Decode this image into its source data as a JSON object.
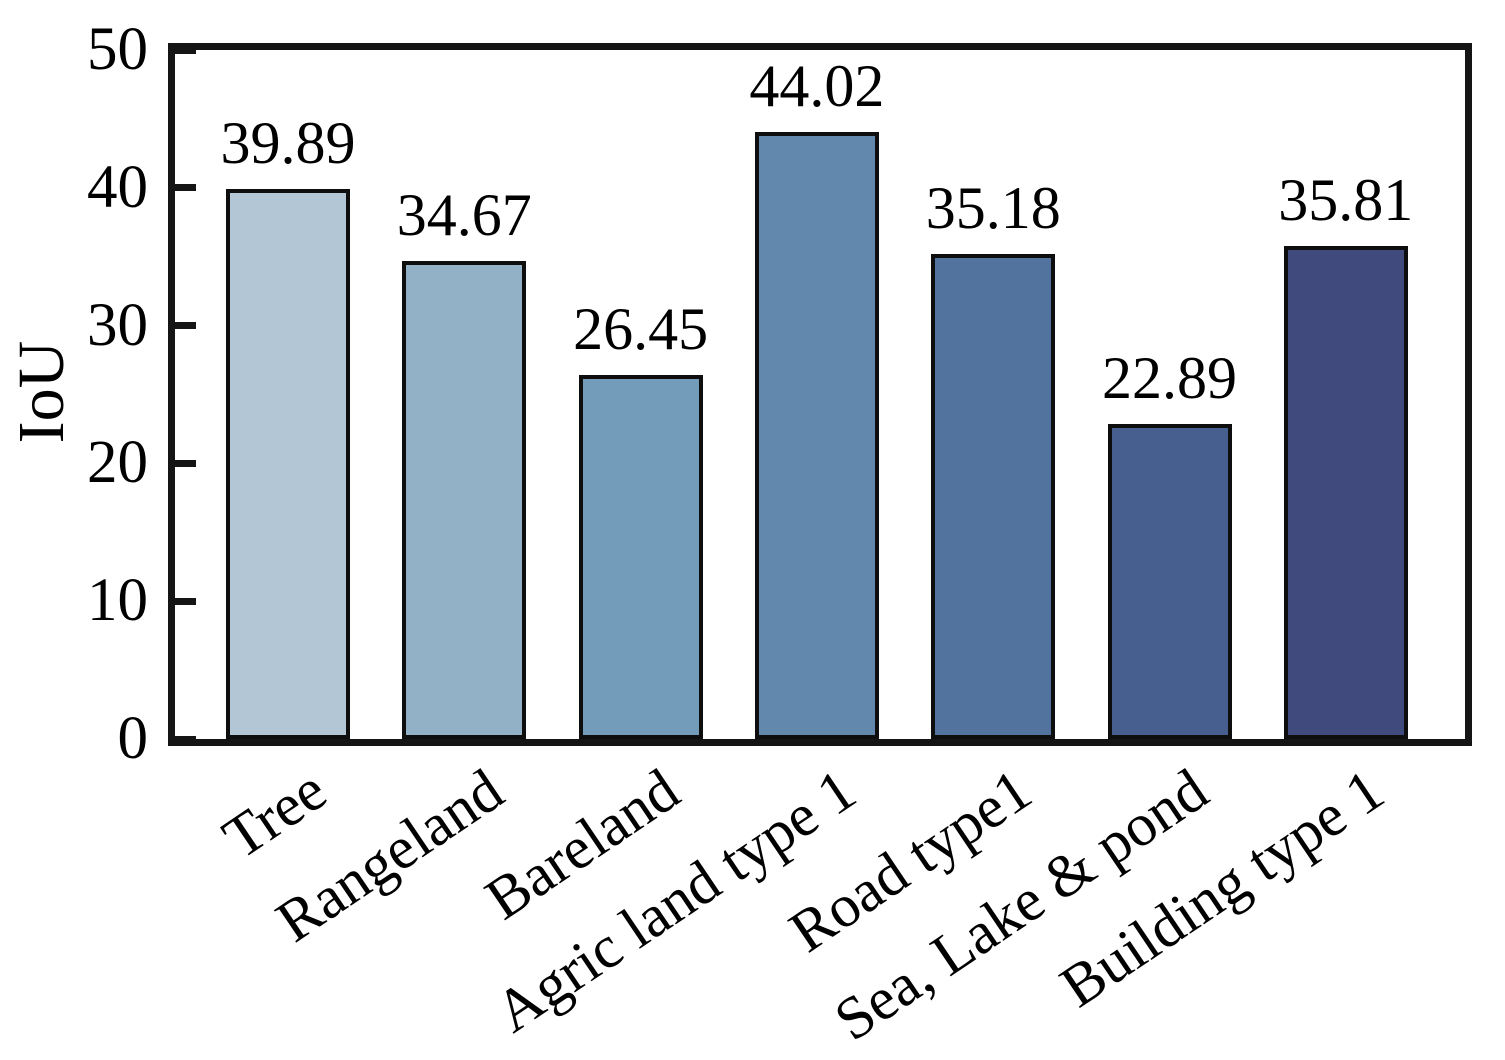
{
  "chart_data": {
    "type": "bar",
    "title": "",
    "xlabel": "",
    "ylabel": "IoU",
    "categories": [
      "Tree",
      "Rangeland",
      "Bareland",
      "Agric land type 1",
      "Road type1",
      "Sea, Lake & pond",
      "Building type 1"
    ],
    "values": [
      39.89,
      34.67,
      26.45,
      44.02,
      35.18,
      22.89,
      35.81
    ],
    "value_labels": [
      "39.89",
      "34.67",
      "26.45",
      "44.02",
      "35.18",
      "22.89",
      "35.81"
    ],
    "ylim": [
      0,
      50
    ],
    "yticks": [
      0,
      10,
      20,
      30,
      40,
      50
    ],
    "grid": false,
    "legend": "none",
    "bar_colors": [
      "#b3c6d6",
      "#92b1c7",
      "#739cba",
      "#6289ad",
      "#51739e",
      "#465f8e",
      "#404a7d"
    ],
    "bar_edge_color": "#0e0e0e",
    "axis_color": "#151515",
    "text_color": "#000000",
    "xlabel_rotation_deg": -34
  }
}
